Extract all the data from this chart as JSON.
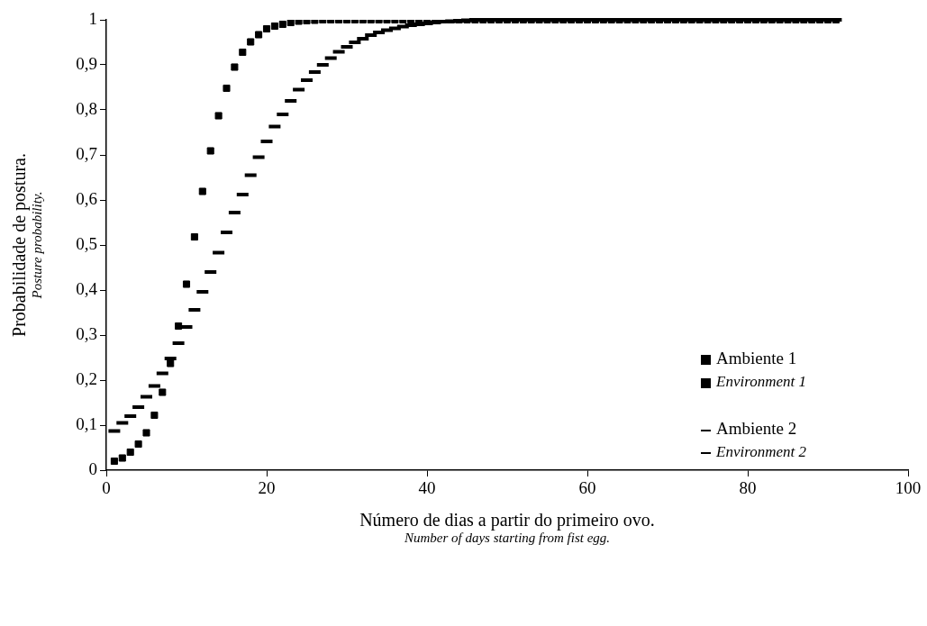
{
  "chart_data": {
    "type": "scatter",
    "xlabel": "Número de dias a partir do primeiro ovo.\nNumber of days starting from fist egg.",
    "ylabel": "Probabilidade de postura.\nPosture probability.",
    "xlim": [
      0,
      100
    ],
    "xticks": [
      0,
      20,
      40,
      60,
      80,
      100
    ],
    "ylim": [
      0,
      1
    ],
    "yticks": [
      0,
      {
        "value": 0.1,
        "label": "0,1"
      },
      {
        "value": 0.2,
        "label": "0,2"
      },
      {
        "value": 0.3,
        "label": "0,3"
      },
      {
        "value": 0.4,
        "label": "0,4"
      },
      {
        "value": 0.5,
        "label": "0,5"
      },
      {
        "value": 0.6,
        "label": "0,6"
      },
      {
        "value": 0.7,
        "label": "0,7"
      },
      {
        "value": 0.8,
        "label": "0,8"
      },
      {
        "value": 0.9,
        "label": "0,9"
      },
      1
    ],
    "grid": false,
    "legend": "right",
    "x": [
      1,
      2,
      3,
      4,
      5,
      6,
      7,
      8,
      9,
      10,
      11,
      12,
      13,
      14,
      15,
      16,
      17,
      18,
      19,
      20,
      21,
      22,
      23,
      24,
      25,
      26,
      27,
      28,
      29,
      30,
      31,
      32,
      33,
      34,
      35,
      36,
      37,
      38,
      39,
      40,
      41,
      42,
      43,
      44,
      45,
      46,
      47,
      48,
      49,
      50,
      51,
      52,
      53,
      54,
      55,
      56,
      57,
      58,
      59,
      60,
      61,
      62,
      63,
      64,
      65,
      66,
      67,
      68,
      69,
      70,
      71,
      72,
      73,
      74,
      75,
      76,
      77,
      78,
      79,
      80,
      81,
      82,
      83,
      84,
      85,
      86,
      87,
      88,
      89,
      90,
      91
    ],
    "series": [
      {
        "name": "Ambiente 1\nEnvironment 1",
        "color": "#000000",
        "marker": "square",
        "values": [
          0.02,
          0.027,
          0.04,
          0.058,
          0.083,
          0.122,
          0.173,
          0.237,
          0.32,
          0.413,
          0.518,
          0.619,
          0.709,
          0.787,
          0.848,
          0.895,
          0.928,
          0.951,
          0.967,
          0.98,
          0.986,
          0.99,
          0.994,
          0.997,
          0.998,
          0.999,
          1,
          1,
          1,
          1,
          1,
          1,
          1,
          1,
          1,
          1,
          1,
          1,
          1,
          1,
          1,
          1,
          1,
          1,
          1,
          1,
          1,
          1,
          1,
          1,
          1,
          1,
          1,
          1,
          1,
          1,
          1,
          1,
          1,
          1,
          1,
          1,
          1,
          1,
          1,
          1,
          1,
          1,
          1,
          1,
          1,
          1,
          1,
          1,
          1,
          1,
          1,
          1,
          1,
          1,
          1,
          1,
          1,
          1,
          1,
          1,
          1,
          1,
          1,
          1,
          1
        ]
      },
      {
        "name": "Ambiente 2\nEnvironment 2",
        "color": "#000000",
        "marker": "square",
        "values": [
          0.087,
          0.105,
          0.12,
          0.14,
          0.163,
          0.187,
          0.215,
          0.248,
          0.282,
          0.318,
          0.356,
          0.396,
          0.44,
          0.483,
          0.528,
          0.572,
          0.612,
          0.655,
          0.695,
          0.73,
          0.763,
          0.79,
          0.82,
          0.845,
          0.866,
          0.884,
          0.9,
          0.915,
          0.929,
          0.94,
          0.95,
          0.958,
          0.966,
          0.972,
          0.977,
          0.981,
          0.985,
          0.988,
          0.99,
          0.992,
          0.994,
          0.996,
          0.997,
          0.998,
          0.999,
          1,
          1,
          1,
          1,
          1,
          1,
          1,
          1,
          1,
          1,
          1,
          1,
          1,
          1,
          1,
          1,
          1,
          1,
          1,
          1,
          1,
          1,
          1,
          1,
          1,
          1,
          1,
          1,
          1,
          1,
          1,
          1,
          1,
          1,
          1,
          1,
          1,
          1,
          1,
          1,
          1,
          1,
          1,
          1,
          1,
          1
        ]
      }
    ]
  }
}
